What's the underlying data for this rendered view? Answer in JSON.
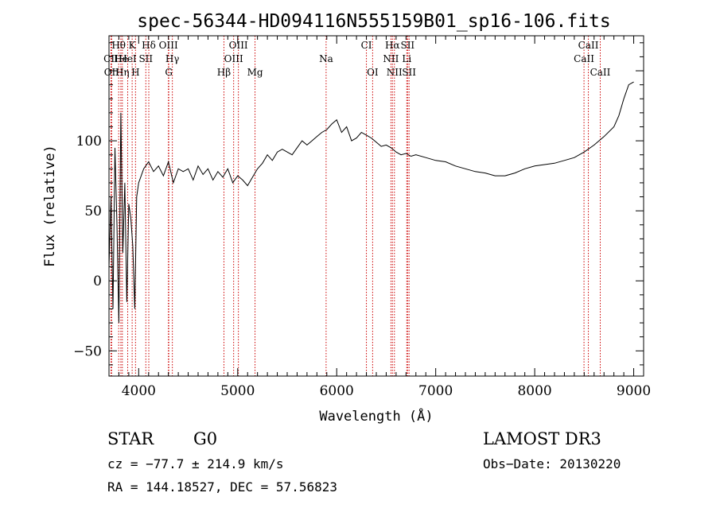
{
  "chart_data": {
    "type": "line",
    "title": "spec-56344-HD094116N555159B01_sp16-106.fits",
    "xlabel": "Wavelength (Å)",
    "ylabel": "Flux (relative)",
    "xlim": [
      3700,
      9100
    ],
    "ylim": [
      -68,
      175
    ],
    "xticks": [
      4000,
      5000,
      6000,
      7000,
      8000,
      9000
    ],
    "yticks": [
      -50,
      0,
      50,
      100
    ],
    "series": [
      {
        "name": "flux",
        "x": [
          3700,
          3720,
          3740,
          3760,
          3780,
          3800,
          3820,
          3840,
          3860,
          3880,
          3900,
          3920,
          3940,
          3960,
          3980,
          4000,
          4050,
          4100,
          4150,
          4200,
          4250,
          4300,
          4350,
          4400,
          4450,
          4500,
          4550,
          4600,
          4650,
          4700,
          4750,
          4800,
          4850,
          4900,
          4950,
          5000,
          5050,
          5100,
          5150,
          5200,
          5250,
          5300,
          5350,
          5400,
          5450,
          5500,
          5550,
          5600,
          5650,
          5700,
          5750,
          5800,
          5850,
          5900,
          5950,
          6000,
          6050,
          6100,
          6150,
          6200,
          6250,
          6300,
          6350,
          6400,
          6450,
          6500,
          6550,
          6600,
          6650,
          6700,
          6750,
          6800,
          6900,
          7000,
          7100,
          7200,
          7300,
          7400,
          7500,
          7600,
          7700,
          7800,
          7900,
          8000,
          8100,
          8200,
          8300,
          8400,
          8500,
          8600,
          8700,
          8800,
          8850,
          8900,
          8950,
          9000
        ],
        "y": [
          10,
          60,
          -20,
          95,
          40,
          -30,
          120,
          20,
          70,
          -15,
          55,
          45,
          25,
          -20,
          60,
          70,
          80,
          85,
          78,
          82,
          75,
          85,
          70,
          80,
          78,
          80,
          72,
          82,
          76,
          80,
          72,
          78,
          74,
          80,
          70,
          75,
          72,
          68,
          74,
          80,
          84,
          90,
          86,
          92,
          94,
          92,
          90,
          95,
          100,
          97,
          100,
          103,
          106,
          108,
          112,
          115,
          106,
          110,
          100,
          102,
          106,
          104,
          102,
          99,
          96,
          97,
          95,
          92,
          90,
          91,
          89,
          90,
          88,
          86,
          85,
          82,
          80,
          78,
          77,
          75,
          75,
          77,
          80,
          82,
          83,
          84,
          86,
          88,
          92,
          97,
          103,
          110,
          118,
          130,
          140,
          142
        ]
      }
    ],
    "lines": [
      {
        "label": "CII",
        "wave": 3720,
        "row": 1
      },
      {
        "label": "OII",
        "wave": 3727,
        "row": 2
      },
      {
        "label": "Hθ",
        "wave": 3798,
        "row": 0
      },
      {
        "label": "He",
        "wave": 3820,
        "row": 1
      },
      {
        "label": "Hη",
        "wave": 3835,
        "row": 2
      },
      {
        "label": "HeI",
        "wave": 3889,
        "row": 1
      },
      {
        "label": "K",
        "wave": 3934,
        "row": 0
      },
      {
        "label": "H",
        "wave": 3968,
        "row": 2
      },
      {
        "label": "SII",
        "wave": 4072,
        "row": 1
      },
      {
        "label": "Hδ",
        "wave": 4102,
        "row": 0
      },
      {
        "label": "OIII",
        "wave": 4300,
        "row": 0
      },
      {
        "label": "G",
        "wave": 4304,
        "row": 2
      },
      {
        "label": "Hγ",
        "wave": 4340,
        "row": 1
      },
      {
        "label": "Hβ",
        "wave": 4861,
        "row": 2
      },
      {
        "label": "OIII",
        "wave": 4959,
        "row": 1
      },
      {
        "label": "OIII",
        "wave": 5007,
        "row": 0
      },
      {
        "label": "Mg",
        "wave": 5175,
        "row": 2
      },
      {
        "label": "Na",
        "wave": 5893,
        "row": 1
      },
      {
        "label": "CI",
        "wave": 6300,
        "row": 0
      },
      {
        "label": "OI",
        "wave": 6363,
        "row": 2
      },
      {
        "label": "NII",
        "wave": 6548,
        "row": 1
      },
      {
        "label": "Hα",
        "wave": 6563,
        "row": 0
      },
      {
        "label": "NII",
        "wave": 6583,
        "row": 2
      },
      {
        "label": "SII",
        "wave": 6716,
        "row": 0
      },
      {
        "label": "Li",
        "wave": 6708,
        "row": 1
      },
      {
        "label": "SII",
        "wave": 6731,
        "row": 2
      },
      {
        "label": "CaII",
        "wave": 8498,
        "row": 1
      },
      {
        "label": "CaII",
        "wave": 8542,
        "row": 0
      },
      {
        "label": "CaII",
        "wave": 8662,
        "row": 2
      }
    ]
  },
  "info": {
    "class": "STAR",
    "subclass": "G0",
    "survey": "LAMOST DR3",
    "cz": "cz = −77.7 ± 214.9 km/s",
    "obs_date": "Obs−Date: 20130220",
    "radec": "RA = 144.18527, DEC =  57.56823"
  },
  "colors": {
    "line_marker": "#cc0000",
    "trace": "#000000"
  }
}
